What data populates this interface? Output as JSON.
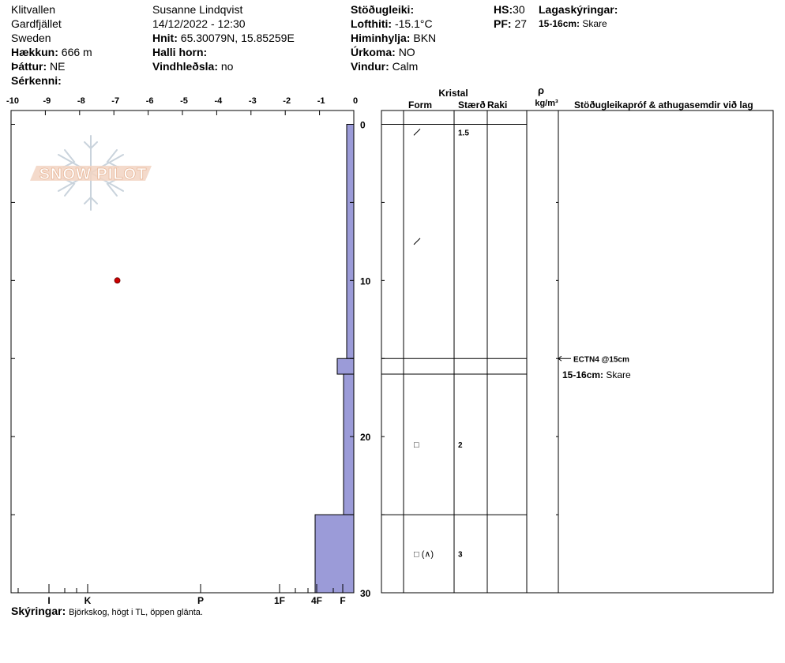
{
  "header": {
    "col1": {
      "location": "Klitvallen",
      "area": "Gardfjället",
      "country": "Sweden",
      "elevation_label": "Hækkun:",
      "elevation": "666 m",
      "aspect_label": "Þáttur:",
      "aspect": "NE",
      "feature_label": "Sérkenni:",
      "feature": ""
    },
    "col2": {
      "observer": "Susanne Lindqvist",
      "datetime": "14/12/2022 - 12:30",
      "coords_label": "Hnit:",
      "coords": "65.30079N, 15.85259E",
      "slope_label": "Halli horn:",
      "slope": "",
      "wind_loading_label": "Vindhleðsla:",
      "wind_loading": "no"
    },
    "col3": {
      "stability_label": "Stöðugleiki:",
      "stability": "",
      "air_temp_label": "Lofthiti:",
      "air_temp": "-15.1°C",
      "sky_label": "Himinhylja:",
      "sky": "BKN",
      "precip_label": "Úrkoma:",
      "precip": "NO",
      "wind_label": "Vindur:",
      "wind": "Calm"
    },
    "col4": {
      "hs_label": "HS:",
      "hs": "30",
      "pf_label": "PF:",
      "pf": "27"
    },
    "col5": {
      "layer_notes_label": "Lagaskýringar:",
      "layer_note_range": "15-16cm:",
      "layer_note_text": "Skare"
    }
  },
  "table_headers": {
    "crystal": "Kristal",
    "form": "Form",
    "size": "Stærð",
    "moisture": "Raki",
    "rho": "ρ",
    "density_unit": "kg/m³",
    "tests": "Stöðugleikapróf & athugasemdir við lag"
  },
  "logo_text": "SNOW PILOT",
  "footer": {
    "label": "Skýringar:",
    "text": "Björkskog, högt i TL, öppen glänta."
  },
  "colors": {
    "hardness_fill": "#9b9bd8",
    "temp_point": "#cc0000",
    "logo": "#e8b89a"
  },
  "chart_data": {
    "type": "snow_profile",
    "temperature_axis": {
      "ticks": [
        "-10",
        "-9",
        "-8",
        "-7",
        "-6",
        "-5",
        "-4",
        "-3",
        "-2",
        "-1",
        "0"
      ],
      "range": [
        -10,
        0
      ]
    },
    "depth_axis": {
      "ticks": [
        "0",
        "10",
        "20",
        "30"
      ],
      "range_cm": [
        0,
        30
      ]
    },
    "hardness_axis": {
      "labels": [
        "I",
        "K",
        "P",
        "1F",
        "4F",
        "F"
      ]
    },
    "temperature_points": [
      {
        "temp_c": -6.9,
        "depth_cm": 10
      }
    ],
    "hardness_layers": [
      {
        "top_cm": 0,
        "bottom_cm": 15,
        "hardness": "F-"
      },
      {
        "top_cm": 15,
        "bottom_cm": 16,
        "hardness": "F+"
      },
      {
        "top_cm": 16,
        "bottom_cm": 25,
        "hardness": "F"
      },
      {
        "top_cm": 25,
        "bottom_cm": 30,
        "hardness": "4F"
      }
    ],
    "layer_boundaries_cm": [
      0,
      15,
      16,
      25
    ],
    "layers": [
      {
        "depth_cm": 0.5,
        "form": "/",
        "size": "1.5"
      },
      {
        "depth_cm": 7.5,
        "form": "/",
        "size": ""
      },
      {
        "depth_cm": 20.5,
        "form": "□",
        "size": "2"
      },
      {
        "depth_cm": 27.5,
        "form": "□ (∧)",
        "size": "3"
      }
    ],
    "stability_tests": [
      {
        "depth_cm": 15,
        "text": "ECTN4 @15cm"
      }
    ],
    "layer_comments": [
      {
        "depth_cm": 16,
        "range": "15-16cm:",
        "text": "Skare"
      }
    ]
  }
}
